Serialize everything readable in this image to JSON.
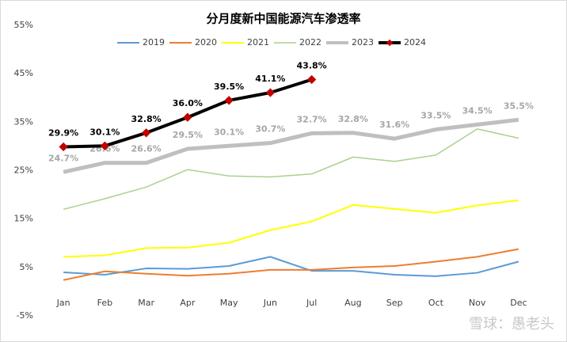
{
  "chart_data": {
    "type": "line",
    "title": "分月度新中国能源汽车渗透率",
    "categories": [
      "Jan",
      "Feb",
      "Mar",
      "Apr",
      "May",
      "Jun",
      "Jul",
      "Aug",
      "Sep",
      "Oct",
      "Nov",
      "Dec"
    ],
    "ylim": [
      -5,
      55
    ],
    "yticks": [
      {
        "value": -5,
        "label": "-5%"
      },
      {
        "value": 5,
        "label": "5%"
      },
      {
        "value": 15,
        "label": "15%"
      },
      {
        "value": 25,
        "label": "25%"
      },
      {
        "value": 35,
        "label": "35%"
      },
      {
        "value": 45,
        "label": "45%"
      },
      {
        "value": 55,
        "label": "55%"
      }
    ],
    "grid": false,
    "legend": "top",
    "series": [
      {
        "name": "2019",
        "color": "#5b9bd5",
        "linewidth": 2,
        "values": [
          4.0,
          3.5,
          4.8,
          4.7,
          5.3,
          7.2,
          4.3,
          4.3,
          3.5,
          3.2,
          3.9,
          6.2
        ]
      },
      {
        "name": "2020",
        "color": "#ed7d31",
        "linewidth": 2,
        "values": [
          2.4,
          4.2,
          3.7,
          3.3,
          3.7,
          4.5,
          4.5,
          5.0,
          5.3,
          6.2,
          7.2,
          8.8
        ]
      },
      {
        "name": "2021",
        "color": "#ffff00",
        "linewidth": 2,
        "values": [
          7.2,
          7.5,
          9.0,
          9.1,
          10.1,
          12.7,
          14.5,
          17.9,
          17.1,
          16.3,
          17.8,
          18.9
        ]
      },
      {
        "name": "2022",
        "color": "#a9d18e",
        "linewidth": 1.5,
        "values": [
          17.0,
          19.2,
          21.6,
          25.2,
          23.9,
          23.7,
          24.3,
          27.8,
          26.9,
          28.2,
          33.6,
          31.7
        ]
      },
      {
        "name": "2023",
        "color": "#bfbfbf",
        "linewidth": 5,
        "values": [
          24.7,
          26.6,
          26.6,
          29.5,
          30.1,
          30.7,
          32.7,
          32.8,
          31.6,
          33.5,
          34.5,
          35.5
        ],
        "value_labels": [
          "24.7%",
          "26.6%",
          "26.6%",
          "29.5%",
          "30.1%",
          "30.7%",
          "32.7%",
          "32.8%",
          "31.6%",
          "33.5%",
          "34.5%",
          "35.5%"
        ]
      },
      {
        "name": "2024",
        "color": "#000000",
        "linewidth": 4,
        "marker": "diamond",
        "marker_color": "#c00000",
        "values": [
          29.9,
          30.1,
          32.8,
          36.0,
          39.5,
          41.1,
          43.8,
          null,
          null,
          null,
          null,
          null
        ],
        "value_labels": [
          "29.9%",
          "30.1%",
          "32.8%",
          "36.0%",
          "39.5%",
          "41.1%",
          "43.8%",
          null,
          null,
          null,
          null,
          null
        ]
      }
    ],
    "watermark": "雪球：愚老头"
  }
}
